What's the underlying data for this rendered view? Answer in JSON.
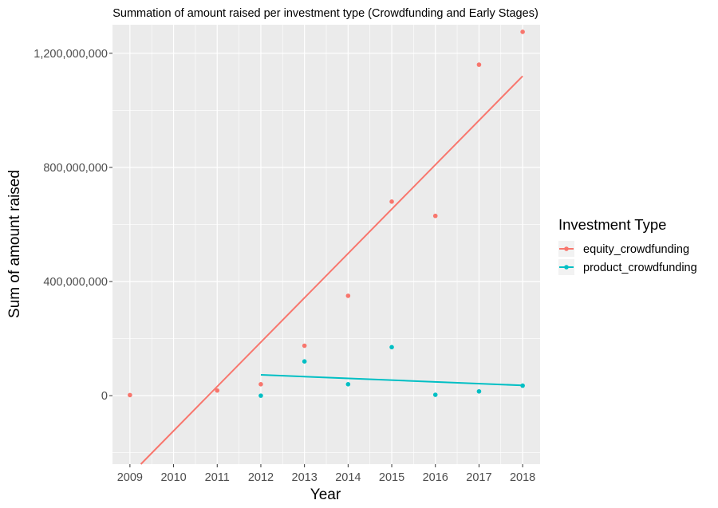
{
  "chart_data": {
    "type": "scatter",
    "title": "Summation of amount raised per investment type (Crowdfunding and Early Stages)",
    "xlabel": "Year",
    "ylabel": "Sum of amount raised",
    "x_ticks": [
      2009,
      2010,
      2011,
      2012,
      2013,
      2014,
      2015,
      2016,
      2017,
      2018
    ],
    "y_ticks": [
      0,
      400000000,
      800000000,
      1200000000
    ],
    "y_tick_labels": [
      "0",
      "400,000,000",
      "800,000,000",
      "1,200,000,000"
    ],
    "xlim": [
      2008.6,
      2018.4
    ],
    "ylim": [
      -240000000,
      1300000000
    ],
    "grid": true,
    "background": "#ebebeb",
    "legend": {
      "title": "Investment Type",
      "position": "right"
    },
    "series": [
      {
        "name": "equity_crowdfunding",
        "color": "#f8766d",
        "points": [
          {
            "x": 2009,
            "y": 2000000
          },
          {
            "x": 2011,
            "y": 18000000
          },
          {
            "x": 2012,
            "y": 40000000
          },
          {
            "x": 2013,
            "y": 175000000
          },
          {
            "x": 2014,
            "y": 350000000
          },
          {
            "x": 2015,
            "y": 680000000
          },
          {
            "x": 2016,
            "y": 630000000
          },
          {
            "x": 2017,
            "y": 1160000000
          },
          {
            "x": 2018,
            "y": 1275000000
          }
        ],
        "trend": {
          "x": [
            2009.25,
            2018
          ],
          "y": [
            -240000000,
            1120000000
          ]
        }
      },
      {
        "name": "product_crowdfunding",
        "color": "#00bfc4",
        "points": [
          {
            "x": 2012,
            "y": 0
          },
          {
            "x": 2013,
            "y": 120000000
          },
          {
            "x": 2014,
            "y": 40000000
          },
          {
            "x": 2015,
            "y": 170000000
          },
          {
            "x": 2016,
            "y": 3000000
          },
          {
            "x": 2017,
            "y": 15000000
          },
          {
            "x": 2018,
            "y": 35000000
          }
        ],
        "trend": {
          "x": [
            2012,
            2018
          ],
          "y": [
            73000000,
            36000000
          ]
        }
      }
    ]
  }
}
